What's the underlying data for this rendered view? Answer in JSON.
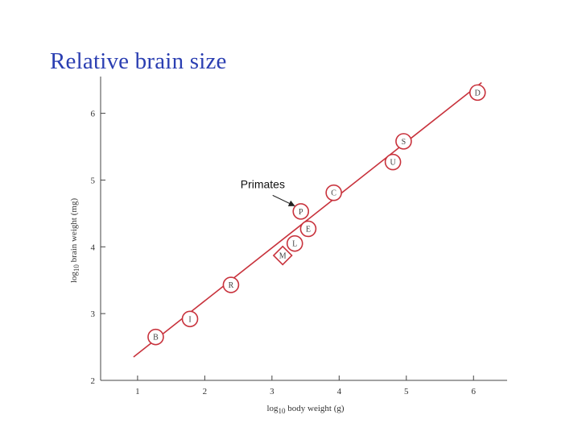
{
  "slide": {
    "title": "Relative brain size"
  },
  "chart_data": {
    "type": "scatter",
    "title": "",
    "xlabel": "log10 body weight (g)",
    "ylabel": "log10 brain weight (mg)",
    "xlabel_parts": {
      "pre": "log",
      "sub": "10",
      "post": " body weight (g)"
    },
    "ylabel_parts": {
      "pre": "log",
      "sub": "10",
      "post": " brain weight (mg)"
    },
    "xlim": [
      0.45,
      6.5
    ],
    "ylim": [
      2,
      6.55
    ],
    "xticks": [
      1,
      2,
      3,
      4,
      5,
      6
    ],
    "yticks": [
      2,
      3,
      4,
      5,
      6
    ],
    "grid": false,
    "series": [
      {
        "points": [
          {
            "label": "B",
            "x": 1.27,
            "y": 2.65,
            "marker": "circle"
          },
          {
            "label": "I",
            "x": 1.78,
            "y": 2.92,
            "marker": "circle"
          },
          {
            "label": "R",
            "x": 2.39,
            "y": 3.43,
            "marker": "circle"
          },
          {
            "label": "M",
            "x": 3.16,
            "y": 3.87,
            "marker": "diamond"
          },
          {
            "label": "L",
            "x": 3.34,
            "y": 4.05,
            "marker": "circle"
          },
          {
            "label": "E",
            "x": 3.54,
            "y": 4.27,
            "marker": "circle"
          },
          {
            "label": "P",
            "x": 3.43,
            "y": 4.53,
            "marker": "circle"
          },
          {
            "label": "C",
            "x": 3.92,
            "y": 4.81,
            "marker": "circle"
          },
          {
            "label": "U",
            "x": 4.8,
            "y": 5.27,
            "marker": "circle"
          },
          {
            "label": "S",
            "x": 4.96,
            "y": 5.58,
            "marker": "circle"
          },
          {
            "label": "D",
            "x": 6.06,
            "y": 6.31,
            "marker": "circle"
          }
        ]
      }
    ],
    "fit_line": {
      "x0": 0.94,
      "y0": 2.35,
      "x1": 6.12,
      "y1": 6.46
    },
    "annotations": [
      {
        "text": "Primates",
        "target": "P"
      }
    ],
    "colors": {
      "line": "#c8323c",
      "marker": "#c8323c",
      "axis": "#444444",
      "title": "#2b3fb2"
    }
  }
}
